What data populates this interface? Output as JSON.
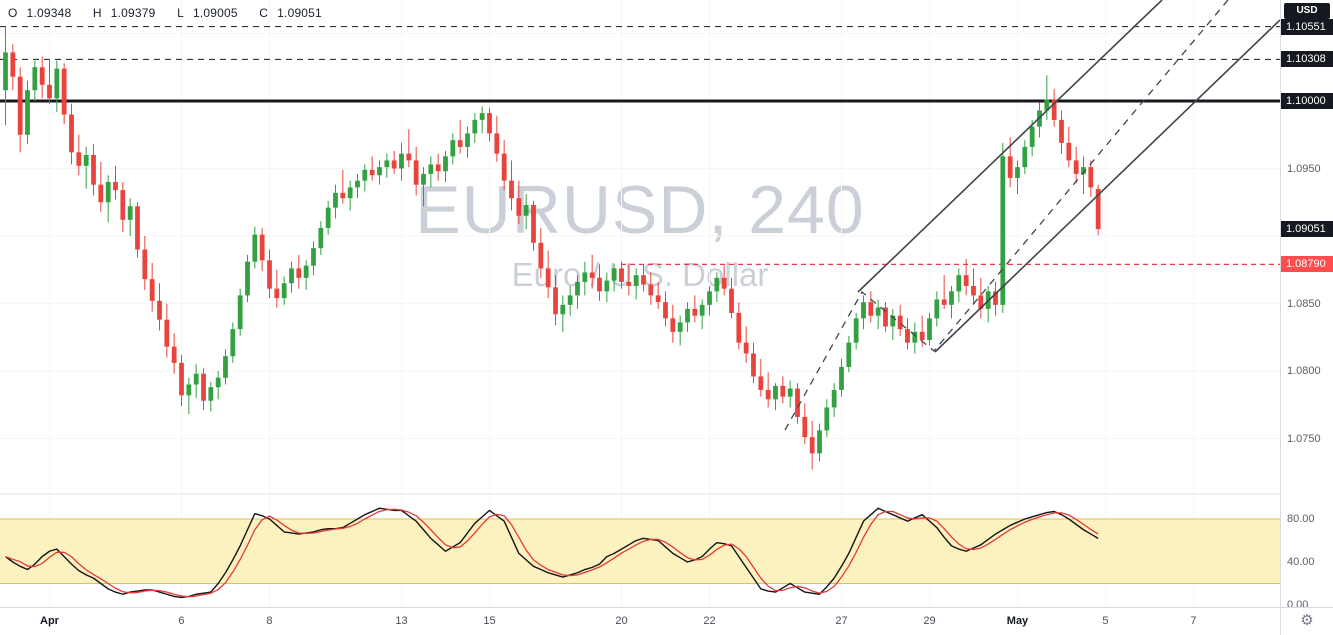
{
  "legend": {
    "o_label": "O",
    "o": "1.09348",
    "h_label": "H",
    "h": "1.09379",
    "l_label": "L",
    "l": "1.09005",
    "c_label": "C",
    "c": "1.09051"
  },
  "watermark": {
    "line1": "EURUSD, 240",
    "line2": "Euro / U.S. Dollar"
  },
  "icons": {
    "gear": "⚙"
  },
  "price_axis": {
    "currency_label": "USD",
    "badges": [
      {
        "text": "1.10551",
        "price": 1.10551,
        "bg": "#15181e"
      },
      {
        "text": "1.10308",
        "price": 1.10308,
        "bg": "#15181e"
      },
      {
        "text": "1.10000",
        "price": 1.1,
        "bg": "#15181e"
      },
      {
        "text": "1.09051",
        "price": 1.09051,
        "bg": "#15181e"
      },
      {
        "text": "1.08790",
        "price": 1.0879,
        "bg": "#ff4d4d"
      }
    ],
    "plain": [
      {
        "text": "1.0950",
        "price": 1.095
      },
      {
        "text": "1.0850",
        "price": 1.085
      },
      {
        "text": "1.0800",
        "price": 1.08
      },
      {
        "text": "1.0750",
        "price": 1.075
      }
    ]
  },
  "stoch_axis": [
    {
      "text": "80.00",
      "value": 80
    },
    {
      "text": "40.00",
      "value": 40
    },
    {
      "text": "0.00",
      "value": 0
    }
  ],
  "time_axis": {
    "ticks": [
      {
        "label": "Apr",
        "day": 1,
        "month": true
      },
      {
        "label": "6",
        "day": 4,
        "month": false
      },
      {
        "label": "8",
        "day": 6,
        "month": false
      },
      {
        "label": "13",
        "day": 9,
        "month": false
      },
      {
        "label": "15",
        "day": 11,
        "month": false
      },
      {
        "label": "20",
        "day": 14,
        "month": false
      },
      {
        "label": "22",
        "day": 16,
        "month": false
      },
      {
        "label": "27",
        "day": 19,
        "month": false
      },
      {
        "label": "29",
        "day": 21,
        "month": false
      },
      {
        "label": "May",
        "day": 23,
        "month": true
      },
      {
        "label": "5",
        "day": 25,
        "month": false
      },
      {
        "label": "7",
        "day": 27,
        "month": false
      }
    ]
  },
  "colors": {
    "up": "#33a141",
    "down": "#e8443d",
    "grid": "#f4f6fa",
    "level_black": "#16181d",
    "line_red": "#f23645",
    "channel": "#40454f",
    "stoch_k": "#141414",
    "stoch_d": "#e53935",
    "band_fill": "rgba(250,232,141,0.55)",
    "band_edge": "#dcc25e",
    "divider": "#e0e3eb"
  },
  "chart_data": [
    {
      "type": "candlestick",
      "title": "EURUSD, 240",
      "subtitle": "Euro / U.S. Dollar",
      "interval_hours": 4,
      "start_day": "Mar 31",
      "candles_per_day": 6,
      "ylim": [
        1.0712,
        1.1075
      ],
      "levels": {
        "dashed_black": [
          1.10551,
          1.10308
        ],
        "solid_black": 1.1,
        "red_dashed": {
          "price": 1.0879,
          "x_start": 621
        }
      },
      "annotations": {
        "channel_solid": [
          [
            858,
            292,
            1162,
            0
          ],
          [
            935,
            352,
            1280,
            20
          ]
        ],
        "zigzag_dashed": [
          [
            785,
            430
          ],
          [
            862,
            292
          ],
          [
            934,
            351
          ],
          [
            1228,
            0
          ]
        ]
      },
      "candles": [
        [
          1.1008,
          1.1055,
          1.0982,
          1.1036
        ],
        [
          1.1036,
          1.1042,
          1.1008,
          1.1018
        ],
        [
          1.1018,
          1.1025,
          1.0962,
          1.0975
        ],
        [
          1.0975,
          1.1015,
          1.0968,
          1.1008
        ],
        [
          1.1008,
          1.103,
          1.1,
          1.1025
        ],
        [
          1.1025,
          1.1033,
          1.1002,
          1.1012
        ],
        [
          1.1012,
          1.1031,
          1.0998,
          1.1002
        ],
        [
          1.1002,
          1.103,
          1.0992,
          1.1024
        ],
        [
          1.1024,
          1.1028,
          1.0983,
          1.099
        ],
        [
          1.099,
          1.0998,
          1.0953,
          1.0962
        ],
        [
          1.0962,
          1.0975,
          1.0945,
          1.0952
        ],
        [
          1.0952,
          1.0966,
          1.0935,
          1.096
        ],
        [
          1.096,
          1.0968,
          1.093,
          1.0938
        ],
        [
          1.0938,
          1.0955,
          1.0918,
          1.0925
        ],
        [
          1.0925,
          1.0945,
          1.091,
          1.094
        ],
        [
          1.094,
          1.0952,
          1.0927,
          1.0934
        ],
        [
          1.0934,
          1.094,
          1.0903,
          1.0912
        ],
        [
          1.0912,
          1.0928,
          1.09,
          1.0922
        ],
        [
          1.0922,
          1.0925,
          1.0884,
          1.089
        ],
        [
          1.089,
          1.09,
          1.086,
          1.0868
        ],
        [
          1.0868,
          1.088,
          1.0844,
          1.0852
        ],
        [
          1.0852,
          1.0865,
          1.083,
          1.0838
        ],
        [
          1.0838,
          1.085,
          1.081,
          1.0818
        ],
        [
          1.0818,
          1.0828,
          1.0798,
          1.0806
        ],
        [
          1.0806,
          1.0812,
          1.0774,
          1.0782
        ],
        [
          1.0782,
          1.0795,
          1.0768,
          1.079
        ],
        [
          1.079,
          1.0805,
          1.078,
          1.0798
        ],
        [
          1.0798,
          1.0802,
          1.0771,
          1.0778
        ],
        [
          1.0778,
          1.0792,
          1.077,
          1.0788
        ],
        [
          1.0788,
          1.08,
          1.0779,
          1.0795
        ],
        [
          1.0795,
          1.0816,
          1.079,
          1.0811
        ],
        [
          1.0811,
          1.0836,
          1.0806,
          1.0831
        ],
        [
          1.0831,
          1.0861,
          1.0826,
          1.0856
        ],
        [
          1.0856,
          1.0886,
          1.0851,
          1.0881
        ],
        [
          1.0881,
          1.0907,
          1.0876,
          1.0901
        ],
        [
          1.0901,
          1.0906,
          1.0874,
          1.0882
        ],
        [
          1.0882,
          1.089,
          1.0854,
          1.0861
        ],
        [
          1.0861,
          1.0875,
          1.0847,
          1.0854
        ],
        [
          1.0854,
          1.087,
          1.0849,
          1.0865
        ],
        [
          1.0865,
          1.0881,
          1.0858,
          1.0876
        ],
        [
          1.0876,
          1.0886,
          1.0861,
          1.0869
        ],
        [
          1.0869,
          1.0882,
          1.086,
          1.0878
        ],
        [
          1.0878,
          1.0896,
          1.0871,
          1.0891
        ],
        [
          1.0891,
          1.0911,
          1.0886,
          1.0906
        ],
        [
          1.0906,
          1.0926,
          1.0901,
          1.0921
        ],
        [
          1.0921,
          1.0938,
          1.0913,
          1.0932
        ],
        [
          1.0932,
          1.0949,
          1.0924,
          1.0928
        ],
        [
          1.0928,
          1.0941,
          1.0919,
          1.0936
        ],
        [
          1.0936,
          1.0946,
          1.0928,
          1.0941
        ],
        [
          1.0941,
          1.0953,
          1.0933,
          1.0949
        ],
        [
          1.0949,
          1.0959,
          1.0941,
          1.0945
        ],
        [
          1.0945,
          1.0956,
          1.0938,
          1.0951
        ],
        [
          1.0951,
          1.0961,
          1.0943,
          1.0956
        ],
        [
          1.0956,
          1.0963,
          1.0946,
          1.095
        ],
        [
          1.095,
          1.0969,
          1.0941,
          1.0961
        ],
        [
          1.0961,
          1.0979,
          1.0951,
          1.0956
        ],
        [
          1.0956,
          1.0966,
          1.093,
          1.0938
        ],
        [
          1.0938,
          1.0951,
          1.0922,
          1.0946
        ],
        [
          1.0946,
          1.0959,
          1.0936,
          1.0953
        ],
        [
          1.0953,
          1.0961,
          1.0941,
          1.0948
        ],
        [
          1.0948,
          1.0963,
          1.094,
          1.0959
        ],
        [
          1.0959,
          1.0976,
          1.0953,
          1.0971
        ],
        [
          1.0971,
          1.0986,
          1.0961,
          1.0966
        ],
        [
          1.0966,
          1.0981,
          1.0958,
          1.0976
        ],
        [
          1.0976,
          1.0991,
          1.0969,
          1.0986
        ],
        [
          1.0986,
          1.0996,
          1.0976,
          1.0991
        ],
        [
          1.0991,
          1.0995,
          1.097,
          1.0976
        ],
        [
          1.0976,
          1.0989,
          1.0955,
          1.0961
        ],
        [
          1.0961,
          1.0971,
          1.0934,
          1.0941
        ],
        [
          1.0941,
          1.0956,
          1.0919,
          1.0928
        ],
        [
          1.0928,
          1.0941,
          1.0909,
          1.0915
        ],
        [
          1.0915,
          1.0931,
          1.0905,
          1.0923
        ],
        [
          1.0923,
          1.0926,
          1.0889,
          1.0895
        ],
        [
          1.0895,
          1.0906,
          1.0869,
          1.0876
        ],
        [
          1.0876,
          1.0889,
          1.0854,
          1.0862
        ],
        [
          1.0862,
          1.0871,
          1.0834,
          1.0842
        ],
        [
          1.0842,
          1.0856,
          1.0829,
          1.0849
        ],
        [
          1.0849,
          1.0863,
          1.0841,
          1.0856
        ],
        [
          1.0856,
          1.0871,
          1.0846,
          1.0866
        ],
        [
          1.0866,
          1.0881,
          1.0856,
          1.0873
        ],
        [
          1.0873,
          1.0886,
          1.0861,
          1.0869
        ],
        [
          1.0869,
          1.0879,
          1.0852,
          1.0859
        ],
        [
          1.0859,
          1.0873,
          1.0851,
          1.0867
        ],
        [
          1.0867,
          1.0879,
          1.0859,
          1.0876
        ],
        [
          1.0876,
          1.0881,
          1.0861,
          1.0866
        ],
        [
          1.0866,
          1.0879,
          1.0856,
          1.0863
        ],
        [
          1.0863,
          1.0876,
          1.0853,
          1.0871
        ],
        [
          1.0871,
          1.0879,
          1.0859,
          1.0864
        ],
        [
          1.0864,
          1.0873,
          1.0849,
          1.0856
        ],
        [
          1.0856,
          1.0866,
          1.0846,
          1.0851
        ],
        [
          1.0851,
          1.0859,
          1.0833,
          1.0839
        ],
        [
          1.0839,
          1.0849,
          1.0821,
          1.0829
        ],
        [
          1.0829,
          1.0841,
          1.0819,
          1.0836
        ],
        [
          1.0836,
          1.0851,
          1.0829,
          1.0846
        ],
        [
          1.0846,
          1.0856,
          1.0836,
          1.0841
        ],
        [
          1.0841,
          1.0853,
          1.0831,
          1.0849
        ],
        [
          1.0849,
          1.0863,
          1.0841,
          1.0859
        ],
        [
          1.0859,
          1.0873,
          1.0851,
          1.0869
        ],
        [
          1.0869,
          1.0878,
          1.0856,
          1.0861
        ],
        [
          1.0861,
          1.0869,
          1.0839,
          1.0843
        ],
        [
          1.0843,
          1.0851,
          1.0816,
          1.0821
        ],
        [
          1.0821,
          1.0833,
          1.0806,
          1.0813
        ],
        [
          1.0813,
          1.0821,
          1.0791,
          1.0796
        ],
        [
          1.0796,
          1.0809,
          1.0781,
          1.0786
        ],
        [
          1.0786,
          1.0799,
          1.0773,
          1.0779
        ],
        [
          1.0779,
          1.0791,
          1.0771,
          1.0789
        ],
        [
          1.0789,
          1.0796,
          1.0776,
          1.0781
        ],
        [
          1.0781,
          1.0793,
          1.0773,
          1.0787
        ],
        [
          1.0787,
          1.0791,
          1.0761,
          1.0766
        ],
        [
          1.0766,
          1.0776,
          1.0746,
          1.0751
        ],
        [
          1.0751,
          1.0763,
          1.0727,
          1.0739
        ],
        [
          1.0739,
          1.0761,
          1.0733,
          1.0756
        ],
        [
          1.0756,
          1.0779,
          1.0751,
          1.0773
        ],
        [
          1.0773,
          1.0791,
          1.0766,
          1.0786
        ],
        [
          1.0786,
          1.0809,
          1.0781,
          1.0803
        ],
        [
          1.0803,
          1.0826,
          1.0799,
          1.0821
        ],
        [
          1.0821,
          1.0843,
          1.0816,
          1.0839
        ],
        [
          1.0839,
          1.0856,
          1.0831,
          1.0851
        ],
        [
          1.0851,
          1.0859,
          1.0836,
          1.0841
        ],
        [
          1.0841,
          1.0853,
          1.0831,
          1.0847
        ],
        [
          1.0847,
          1.0851,
          1.0829,
          1.0833
        ],
        [
          1.0833,
          1.0846,
          1.0823,
          1.0841
        ],
        [
          1.0841,
          1.0849,
          1.0826,
          1.0831
        ],
        [
          1.0831,
          1.0839,
          1.0816,
          1.0821
        ],
        [
          1.0821,
          1.0836,
          1.0813,
          1.0829
        ],
        [
          1.0829,
          1.0841,
          1.0818,
          1.0823
        ],
        [
          1.0823,
          1.0843,
          1.0819,
          1.0839
        ],
        [
          1.0839,
          1.0859,
          1.0833,
          1.0853
        ],
        [
          1.0853,
          1.0871,
          1.0846,
          1.0849
        ],
        [
          1.0849,
          1.0863,
          1.0839,
          1.0859
        ],
        [
          1.0859,
          1.0876,
          1.0851,
          1.0871
        ],
        [
          1.0871,
          1.0883,
          1.0856,
          1.0863
        ],
        [
          1.0863,
          1.0876,
          1.0849,
          1.0856
        ],
        [
          1.0856,
          1.0869,
          1.0839,
          1.0846
        ],
        [
          1.0846,
          1.0863,
          1.0836,
          1.0859
        ],
        [
          1.0859,
          1.0866,
          1.0841,
          1.0849
        ],
        [
          1.0849,
          1.0969,
          1.0843,
          1.0959
        ],
        [
          1.0959,
          1.0973,
          1.0936,
          1.0943
        ],
        [
          1.0943,
          1.0956,
          1.0931,
          1.0951
        ],
        [
          1.0951,
          1.0971,
          1.0946,
          1.0966
        ],
        [
          1.0966,
          1.0986,
          1.0959,
          1.0981
        ],
        [
          1.0981,
          1.0999,
          1.0973,
          1.0993
        ],
        [
          1.0993,
          1.1019,
          1.0986,
          1.1001
        ],
        [
          1.1001,
          1.1009,
          1.0981,
          1.0986
        ],
        [
          1.0986,
          1.0993,
          1.0961,
          1.0969
        ],
        [
          1.0969,
          1.0981,
          1.0951,
          1.0956
        ],
        [
          1.0956,
          1.0966,
          1.0939,
          1.0946
        ],
        [
          1.0946,
          1.0959,
          1.0931,
          1.0951
        ],
        [
          1.0951,
          1.0956,
          1.0929,
          1.0936
        ],
        [
          1.09348,
          1.09379,
          1.09005,
          1.09051
        ]
      ]
    },
    {
      "type": "line",
      "name": "Stochastic",
      "legend_position": "none",
      "ylim": [
        0,
        100
      ],
      "band": [
        20,
        80
      ],
      "tick_labels": [
        80,
        40,
        0
      ],
      "d_smoothing": 3,
      "k": [
        45,
        40,
        36,
        33,
        38,
        45,
        50,
        52,
        45,
        38,
        32,
        28,
        25,
        20,
        15,
        12,
        10,
        12,
        13,
        14,
        14,
        12,
        10,
        8,
        7,
        8,
        10,
        11,
        12,
        20,
        30,
        42,
        55,
        70,
        85,
        83,
        80,
        74,
        68,
        67,
        66,
        67,
        68,
        70,
        71,
        71,
        72,
        76,
        80,
        84,
        87,
        90,
        89,
        88,
        88,
        83,
        78,
        70,
        62,
        56,
        50,
        54,
        58,
        67,
        76,
        82,
        88,
        83,
        78,
        63,
        48,
        42,
        36,
        33,
        30,
        28,
        26,
        28,
        30,
        33,
        35,
        38,
        45,
        48,
        52,
        56,
        60,
        62,
        61,
        60,
        54,
        48,
        44,
        40,
        42,
        45,
        52,
        58,
        57,
        55,
        45,
        35,
        25,
        15,
        13,
        12,
        16,
        20,
        16,
        12,
        11,
        10,
        17,
        25,
        36,
        48,
        63,
        78,
        84,
        90,
        87,
        84,
        81,
        78,
        81,
        84,
        78,
        72,
        63,
        55,
        52,
        50,
        53,
        56,
        61,
        66,
        70,
        74,
        77,
        80,
        82,
        84,
        86,
        87,
        84,
        80,
        75,
        70,
        66,
        62
      ]
    }
  ]
}
